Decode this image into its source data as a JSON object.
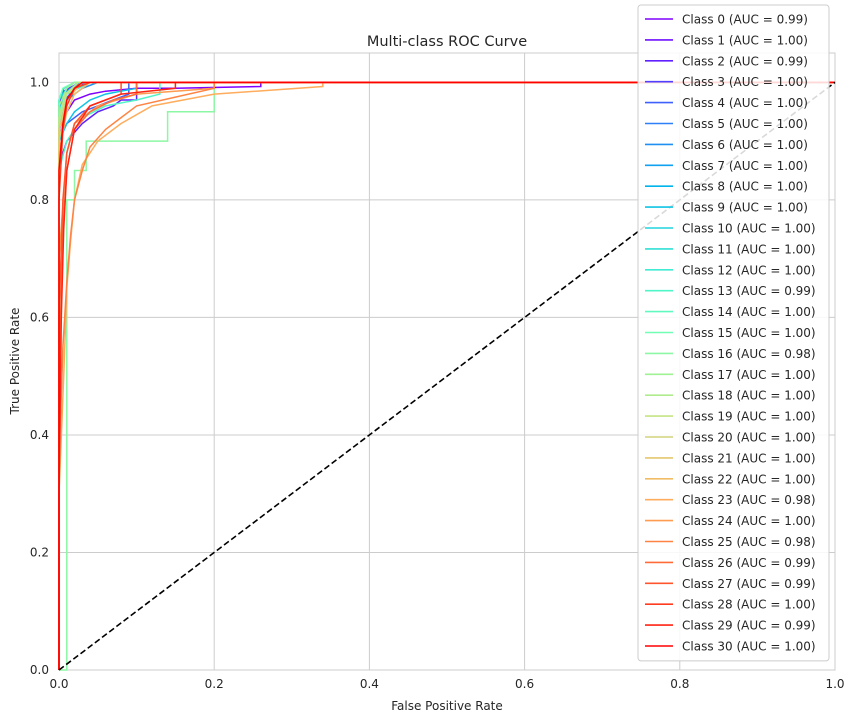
{
  "chart_data": {
    "type": "line",
    "title": "Multi-class ROC Curve",
    "xlabel": "False Positive Rate",
    "ylabel": "True Positive Rate",
    "xlim": [
      0,
      1
    ],
    "ylim": [
      0,
      1.05
    ],
    "xticks": [
      "0.0",
      "0.2",
      "0.4",
      "0.6",
      "0.8",
      "1.0"
    ],
    "yticks": [
      "0.0",
      "0.2",
      "0.4",
      "0.6",
      "0.8",
      "1.0"
    ],
    "grid": true,
    "legend_position": "right",
    "diagonal": {
      "x": [
        0,
        1
      ],
      "y": [
        0,
        1
      ],
      "style": "dashed",
      "color": "#000000"
    },
    "series": [
      {
        "name": "Class 0 (AUC = 0.99)",
        "color": "#8000ff",
        "x": [
          0,
          0.0,
          0.004,
          0.01,
          0.02,
          0.04,
          0.06,
          0.1,
          0.15,
          0.26,
          0.26,
          1
        ],
        "y": [
          0,
          0.9,
          0.93,
          0.95,
          0.97,
          0.98,
          0.985,
          0.99,
          0.99,
          0.993,
          1.0,
          1.0
        ]
      },
      {
        "name": "Class 1 (AUC = 1.00)",
        "color": "#7010ff",
        "x": [
          0,
          0.0,
          0.006,
          0.02,
          0.03,
          1
        ],
        "y": [
          0,
          0.96,
          0.985,
          0.995,
          1.0,
          1.0
        ]
      },
      {
        "name": "Class 2 (AUC = 0.99)",
        "color": "#6020ff",
        "x": [
          0,
          0.0,
          0.01,
          0.03,
          0.04,
          0.05,
          0.07,
          0.08,
          0.1,
          0.1,
          1
        ],
        "y": [
          0,
          0.86,
          0.9,
          0.93,
          0.94,
          0.95,
          0.96,
          0.97,
          0.97,
          1.0,
          1.0
        ]
      },
      {
        "name": "Class 3 (AUC = 1.00)",
        "color": "#5040fe",
        "x": [
          0,
          0.0,
          0.008,
          0.02,
          0.035,
          1
        ],
        "y": [
          0,
          0.94,
          0.97,
          0.99,
          1.0,
          1.0
        ]
      },
      {
        "name": "Class 4 (AUC = 1.00)",
        "color": "#3f60fb",
        "x": [
          0,
          0.0,
          0.01,
          0.03,
          0.05,
          0.07,
          0.09,
          0.09,
          1
        ],
        "y": [
          0,
          0.9,
          0.93,
          0.95,
          0.96,
          0.97,
          0.98,
          1.0,
          1.0
        ]
      },
      {
        "name": "Class 5 (AUC = 1.00)",
        "color": "#2f7ff7",
        "x": [
          0,
          0.0,
          0.005,
          0.015,
          0.03,
          1
        ],
        "y": [
          0,
          0.95,
          0.98,
          0.99,
          1.0,
          1.0
        ]
      },
      {
        "name": "Class 6 (AUC = 1.00)",
        "color": "#1f8ff2",
        "x": [
          0,
          0.0,
          0.01,
          0.03,
          0.05,
          1
        ],
        "y": [
          0,
          0.93,
          0.97,
          0.99,
          1.0,
          1.0
        ]
      },
      {
        "name": "Class 7 (AUC = 1.00)",
        "color": "#10a2f0",
        "x": [
          0,
          0.0,
          0.01,
          0.025,
          1
        ],
        "y": [
          0,
          0.96,
          0.985,
          1.0,
          1.0
        ]
      },
      {
        "name": "Class 8 (AUC = 1.00)",
        "color": "#00b5eb",
        "x": [
          0,
          0.0,
          0.006,
          0.02,
          1
        ],
        "y": [
          0,
          0.97,
          0.99,
          1.0,
          1.0
        ]
      },
      {
        "name": "Class 9 (AUC = 1.00)",
        "color": "#10c4e3",
        "x": [
          0,
          0.0,
          0.01,
          0.02,
          0.04,
          0.06,
          0.1,
          0.1,
          1
        ],
        "y": [
          0,
          0.9,
          0.93,
          0.95,
          0.97,
          0.98,
          0.99,
          1.0,
          1.0
        ]
      },
      {
        "name": "Class 10 (AUC = 1.00)",
        "color": "#20d4dd",
        "x": [
          0,
          0.0,
          0.01,
          0.02,
          1
        ],
        "y": [
          0,
          0.97,
          0.99,
          1.0,
          1.0
        ]
      },
      {
        "name": "Class 11 (AUC = 1.00)",
        "color": "#30e0d6",
        "x": [
          0,
          0.0,
          0.008,
          0.03,
          1
        ],
        "y": [
          0,
          0.95,
          0.98,
          1.0,
          1.0
        ]
      },
      {
        "name": "Class 12 (AUC = 1.00)",
        "color": "#40ecd3",
        "x": [
          0,
          0.0,
          0.01,
          0.04,
          1
        ],
        "y": [
          0,
          0.94,
          0.98,
          1.0,
          1.0
        ]
      },
      {
        "name": "Class 13 (AUC = 0.99)",
        "color": "#50f5c8",
        "x": [
          0,
          0.0,
          0.01,
          0.03,
          0.06,
          0.1,
          0.13,
          0.13,
          1
        ],
        "y": [
          0,
          0.85,
          0.9,
          0.94,
          0.96,
          0.97,
          0.98,
          1.0,
          1.0
        ]
      },
      {
        "name": "Class 14 (AUC = 1.00)",
        "color": "#60fac0",
        "x": [
          0,
          0.0,
          0.01,
          0.03,
          1
        ],
        "y": [
          0,
          0.95,
          0.98,
          1.0,
          1.0
        ]
      },
      {
        "name": "Class 15 (AUC = 1.00)",
        "color": "#70ffb5",
        "x": [
          0,
          0.0,
          0.005,
          0.02,
          1
        ],
        "y": [
          0,
          0.97,
          0.99,
          1.0,
          1.0
        ]
      },
      {
        "name": "Class 16 (AUC = 0.98)",
        "color": "#8cf7a4",
        "x": [
          0,
          0.0,
          0.01,
          0.01,
          0.02,
          0.02,
          0.035,
          0.035,
          0.14,
          0.14,
          0.2,
          0.2,
          0.2,
          1
        ],
        "y": [
          0,
          0.0,
          0.0,
          0.8,
          0.8,
          0.85,
          0.85,
          0.9,
          0.9,
          0.95,
          0.95,
          0.99,
          1.0,
          1.0
        ]
      },
      {
        "name": "Class 17 (AUC = 1.00)",
        "color": "#a0f094",
        "x": [
          0,
          0.0,
          0.01,
          0.02,
          1
        ],
        "y": [
          0,
          0.96,
          0.99,
          1.0,
          1.0
        ]
      },
      {
        "name": "Class 18 (AUC = 1.00)",
        "color": "#b0ec8e",
        "x": [
          0,
          0.0,
          0.01,
          0.03,
          1
        ],
        "y": [
          0,
          0.93,
          0.98,
          1.0,
          1.0
        ]
      },
      {
        "name": "Class 19 (AUC = 1.00)",
        "color": "#c4e484",
        "x": [
          0,
          0.0,
          0.008,
          0.025,
          1
        ],
        "y": [
          0,
          0.94,
          0.98,
          1.0,
          1.0
        ]
      },
      {
        "name": "Class 20 (AUC = 1.00)",
        "color": "#d4d47c",
        "x": [
          0,
          0.0,
          0.01,
          0.03,
          1
        ],
        "y": [
          0,
          0.9,
          0.97,
          1.0,
          1.0
        ]
      },
      {
        "name": "Class 21 (AUC = 1.00)",
        "color": "#e4c86e",
        "x": [
          0,
          0.0,
          0.01,
          0.03,
          1
        ],
        "y": [
          0,
          0.92,
          0.97,
          1.0,
          1.0
        ]
      },
      {
        "name": "Class 22 (AUC = 1.00)",
        "color": "#f0bc66",
        "x": [
          0,
          0.0,
          0.01,
          0.02,
          0.04,
          1
        ],
        "y": [
          0,
          0.88,
          0.95,
          0.98,
          1.0,
          1.0
        ]
      },
      {
        "name": "Class 23 (AUC = 0.98)",
        "color": "#ffac5c",
        "x": [
          0,
          0.0,
          0.006,
          0.01,
          0.015,
          0.02,
          0.03,
          0.05,
          0.08,
          0.12,
          0.2,
          0.34,
          0.34,
          1
        ],
        "y": [
          0,
          0.3,
          0.5,
          0.65,
          0.73,
          0.8,
          0.86,
          0.9,
          0.93,
          0.96,
          0.98,
          0.993,
          1.0,
          1.0
        ]
      },
      {
        "name": "Class 24 (AUC = 1.00)",
        "color": "#ff9c50",
        "x": [
          0,
          0.0,
          0.01,
          0.02,
          0.05,
          0.1,
          0.2,
          0.2,
          1
        ],
        "y": [
          0,
          0.7,
          0.88,
          0.93,
          0.96,
          0.98,
          0.99,
          1.0,
          1.0
        ]
      },
      {
        "name": "Class 25 (AUC = 0.98)",
        "color": "#ff8444",
        "x": [
          0,
          0.0,
          0.005,
          0.01,
          0.015,
          0.02,
          0.03,
          0.04,
          0.06,
          0.08,
          0.1,
          0.15,
          0.2,
          0.2,
          1
        ],
        "y": [
          0,
          0.35,
          0.55,
          0.66,
          0.74,
          0.8,
          0.85,
          0.89,
          0.92,
          0.94,
          0.96,
          0.975,
          0.99,
          1.0,
          1.0
        ]
      },
      {
        "name": "Class 26 (AUC = 0.99)",
        "color": "#ff6c38",
        "x": [
          0,
          0.0,
          0.005,
          0.01,
          0.02,
          0.04,
          0.07,
          0.1,
          0.1,
          1
        ],
        "y": [
          0,
          0.5,
          0.75,
          0.85,
          0.92,
          0.95,
          0.97,
          0.98,
          1.0,
          1.0
        ]
      },
      {
        "name": "Class 27 (AUC = 0.99)",
        "color": "#ff542c",
        "x": [
          0,
          0.0,
          0.005,
          0.01,
          0.02,
          0.04,
          0.08,
          0.08,
          1
        ],
        "y": [
          0,
          0.6,
          0.8,
          0.88,
          0.93,
          0.96,
          0.98,
          1.0,
          1.0
        ]
      },
      {
        "name": "Class 28 (AUC = 1.00)",
        "color": "#ff3c20",
        "x": [
          0,
          0.0,
          0.005,
          0.01,
          0.02,
          0.04,
          1
        ],
        "y": [
          0,
          0.8,
          0.92,
          0.96,
          0.99,
          1.0,
          1.0
        ]
      },
      {
        "name": "Class 29 (AUC = 0.99)",
        "color": "#ff2414",
        "x": [
          0,
          0.0,
          0.003,
          0.006,
          0.01,
          0.02,
          0.04,
          0.08,
          0.15,
          0.15,
          1
        ],
        "y": [
          0,
          0.3,
          0.6,
          0.75,
          0.85,
          0.92,
          0.96,
          0.98,
          0.99,
          1.0,
          1.0
        ]
      },
      {
        "name": "Class 30 (AUC = 1.00)",
        "color": "#ff0000",
        "x": [
          0,
          0.0,
          0.005,
          0.01,
          0.02,
          0.03,
          1
        ],
        "y": [
          0,
          0.85,
          0.93,
          0.97,
          0.99,
          1.0,
          1.0
        ]
      }
    ]
  }
}
